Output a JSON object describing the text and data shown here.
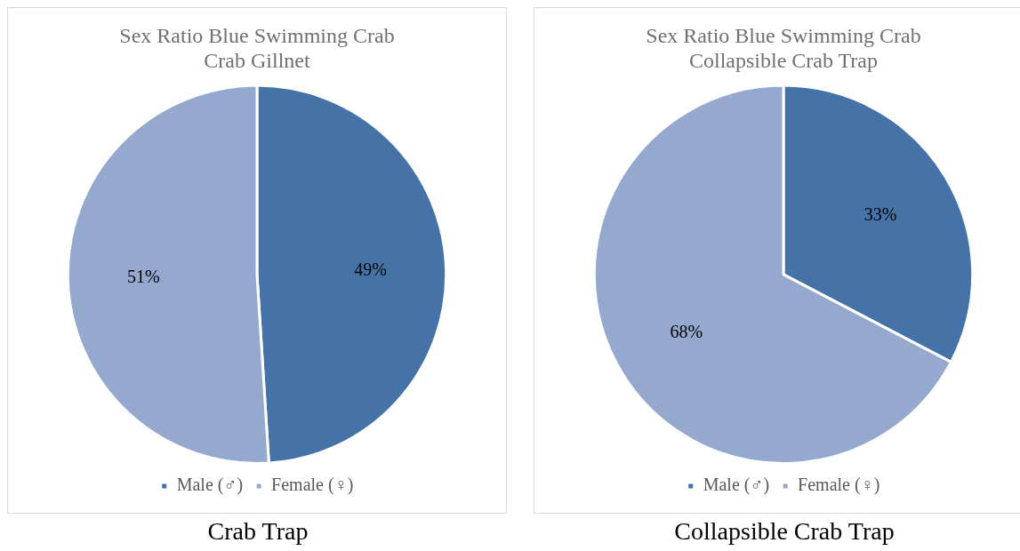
{
  "chart_data": [
    {
      "type": "pie",
      "title": "Sex Ratio Blue Swimming Crab\nCrab Gillnet",
      "categories": [
        "Male (♂)",
        "Female (♀)"
      ],
      "values": [
        49,
        51
      ],
      "colors": [
        "#4673a7",
        "#95a9cf"
      ],
      "value_labels": [
        "49%",
        "51%"
      ],
      "legend": "bottom",
      "annotations": [
        "Crab Trap"
      ]
    },
    {
      "type": "pie",
      "title": "Sex Ratio Blue Swimming Crab\nCollapsible Crab Trap",
      "categories": [
        "Male (♂)",
        "Female (♀)"
      ],
      "values": [
        33,
        68
      ],
      "colors": [
        "#4673a7",
        "#95a9cf"
      ],
      "value_labels": [
        "33%",
        "68%"
      ],
      "legend": "bottom",
      "annotations": [
        "Collapsible Crab Trap"
      ]
    }
  ]
}
